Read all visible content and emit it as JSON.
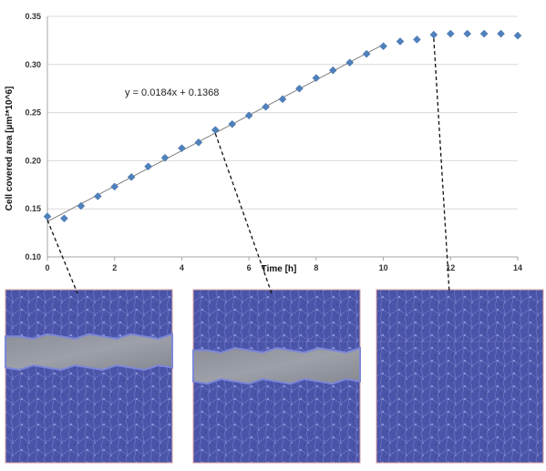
{
  "chart_data": {
    "type": "scatter",
    "title": "",
    "xlabel": "Time [h]",
    "ylabel": "Cell covered area [µm²*10^6]",
    "xlim": [
      0,
      14
    ],
    "ylim": [
      0.1,
      0.35
    ],
    "x_ticks": [
      "0",
      "2",
      "4",
      "6",
      "8",
      "10",
      "12",
      "14"
    ],
    "y_ticks": [
      "0.10",
      "0.15",
      "0.20",
      "0.25",
      "0.30",
      "0.35"
    ],
    "grid": true,
    "legend": "none",
    "marker_color": "#4f81bd",
    "trendline": {
      "equation": "y = 0.0184x + 0.1368",
      "slope": 0.0184,
      "intercept": 0.1368,
      "x_range": [
        0,
        10
      ],
      "color": "#808080"
    },
    "series": [
      {
        "x": [
          0,
          0.5,
          1,
          1.5,
          2,
          2.5,
          3,
          3.5,
          4,
          4.5,
          5,
          5.5,
          6,
          6.5,
          7,
          7.5,
          8,
          8.5,
          9,
          9.5,
          10,
          10.5,
          11,
          11.5,
          12,
          12.5,
          13,
          13.5,
          14
        ],
        "values": [
          0.142,
          0.14,
          0.153,
          0.163,
          0.173,
          0.183,
          0.194,
          0.203,
          0.213,
          0.219,
          0.232,
          0.238,
          0.247,
          0.256,
          0.264,
          0.275,
          0.286,
          0.294,
          0.302,
          0.311,
          0.319,
          0.324,
          0.326,
          0.331,
          0.332,
          0.332,
          0.332,
          0.332,
          0.33
        ]
      }
    ],
    "callouts": [
      {
        "x": 0,
        "y": 0.142
      },
      {
        "x": 5,
        "y": 0.232
      },
      {
        "x": 11.5,
        "y": 0.331
      }
    ]
  },
  "micrographs": [
    {
      "stage": "open-wound",
      "gap": [
        0.27,
        0.45
      ]
    },
    {
      "stage": "partial-closure",
      "gap": [
        0.35,
        0.53
      ]
    },
    {
      "stage": "closed",
      "gap": null
    }
  ]
}
